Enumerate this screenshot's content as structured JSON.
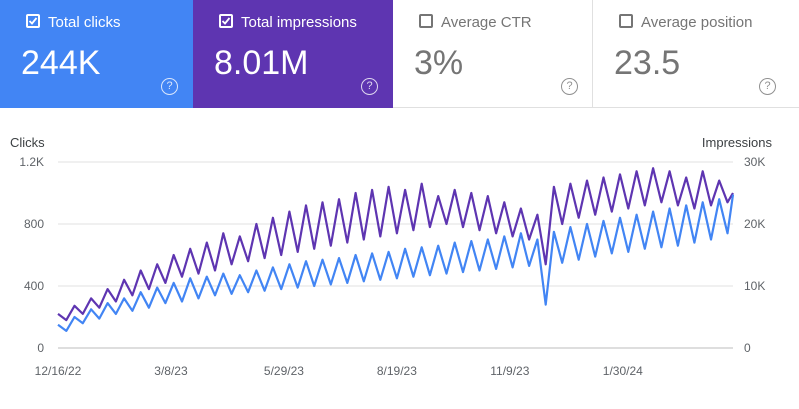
{
  "metrics": [
    {
      "label": "Total clicks",
      "value": "244K",
      "checked": true
    },
    {
      "label": "Total impressions",
      "value": "8.01M",
      "checked": true
    },
    {
      "label": "Average CTR",
      "value": "3%",
      "checked": false
    },
    {
      "label": "Average position",
      "value": "23.5",
      "checked": false
    }
  ],
  "help_glyph": "?",
  "colors": {
    "clicks": "#4285f4",
    "impressions": "#5e35b1",
    "grid": "#e0e0e0",
    "axis_text": "#5f6368"
  },
  "chart_data": {
    "type": "line",
    "left_axis_label": "Clicks",
    "right_axis_label": "Impressions",
    "left_ticks": [
      "0",
      "400",
      "800",
      "1.2K"
    ],
    "right_ticks": [
      "0",
      "10K",
      "20K",
      "30K"
    ],
    "left_ylim": [
      0,
      1200
    ],
    "right_ylim": [
      0,
      30000
    ],
    "x_labels": [
      "12/16/22",
      "3/8/23",
      "5/29/23",
      "8/19/23",
      "11/9/23",
      "1/30/24"
    ],
    "x_label_days": [
      0,
      82,
      164,
      246,
      328,
      410
    ],
    "x_range_days": [
      0,
      490
    ],
    "series": [
      {
        "name": "Clicks",
        "axis": "left",
        "color": "#4285f4",
        "x_days": [
          0,
          6,
          12,
          18,
          24,
          30,
          36,
          42,
          48,
          54,
          60,
          66,
          72,
          78,
          84,
          90,
          96,
          102,
          108,
          114,
          120,
          126,
          132,
          138,
          144,
          150,
          156,
          162,
          168,
          174,
          180,
          186,
          192,
          198,
          204,
          210,
          216,
          222,
          228,
          234,
          240,
          246,
          252,
          258,
          264,
          270,
          276,
          282,
          288,
          294,
          300,
          306,
          312,
          318,
          324,
          330,
          336,
          342,
          348,
          354,
          360,
          366,
          372,
          378,
          384,
          390,
          396,
          402,
          408,
          414,
          420,
          426,
          432,
          438,
          444,
          450,
          456,
          462,
          468,
          474,
          480,
          486,
          490
        ],
        "values": [
          150,
          110,
          200,
          160,
          250,
          190,
          290,
          220,
          320,
          240,
          360,
          260,
          390,
          290,
          420,
          300,
          450,
          320,
          460,
          340,
          480,
          350,
          470,
          360,
          500,
          370,
          520,
          380,
          540,
          390,
          560,
          400,
          570,
          410,
          580,
          420,
          600,
          430,
          610,
          440,
          620,
          450,
          640,
          460,
          650,
          470,
          660,
          480,
          680,
          490,
          690,
          500,
          700,
          510,
          720,
          520,
          740,
          530,
          700,
          280,
          750,
          550,
          780,
          570,
          800,
          590,
          820,
          610,
          840,
          620,
          860,
          640,
          880,
          650,
          900,
          660,
          920,
          680,
          940,
          700,
          960,
          740,
          990
        ]
      },
      {
        "name": "Impressions",
        "axis": "right",
        "color": "#5e35b1",
        "x_days": [
          0,
          6,
          12,
          18,
          24,
          30,
          36,
          42,
          48,
          54,
          60,
          66,
          72,
          78,
          84,
          90,
          96,
          102,
          108,
          114,
          120,
          126,
          132,
          138,
          144,
          150,
          156,
          162,
          168,
          174,
          180,
          186,
          192,
          198,
          204,
          210,
          216,
          222,
          228,
          234,
          240,
          246,
          252,
          258,
          264,
          270,
          276,
          282,
          288,
          294,
          300,
          306,
          312,
          318,
          324,
          330,
          336,
          342,
          348,
          354,
          360,
          366,
          372,
          378,
          384,
          390,
          396,
          402,
          408,
          414,
          420,
          426,
          432,
          438,
          444,
          450,
          456,
          462,
          468,
          474,
          480,
          486,
          490
        ],
        "values": [
          5500,
          4500,
          6800,
          5500,
          8000,
          6500,
          9500,
          7500,
          11000,
          8500,
          12500,
          9500,
          13500,
          10500,
          15000,
          11500,
          16000,
          12000,
          17000,
          12500,
          18500,
          13500,
          18000,
          14000,
          20000,
          14500,
          21000,
          15000,
          22000,
          15500,
          23000,
          16000,
          23500,
          16500,
          24000,
          17000,
          25000,
          17500,
          25500,
          18000,
          26000,
          18500,
          25500,
          19000,
          26500,
          19500,
          24500,
          20000,
          25500,
          19500,
          25000,
          19000,
          24500,
          18500,
          23500,
          18000,
          22500,
          17500,
          21500,
          13500,
          26000,
          20000,
          26500,
          21000,
          27000,
          21500,
          27500,
          22000,
          28000,
          22500,
          28500,
          23000,
          29000,
          23500,
          28500,
          23000,
          27500,
          22500,
          28500,
          23000,
          27000,
          23500,
          25000
        ]
      }
    ]
  }
}
